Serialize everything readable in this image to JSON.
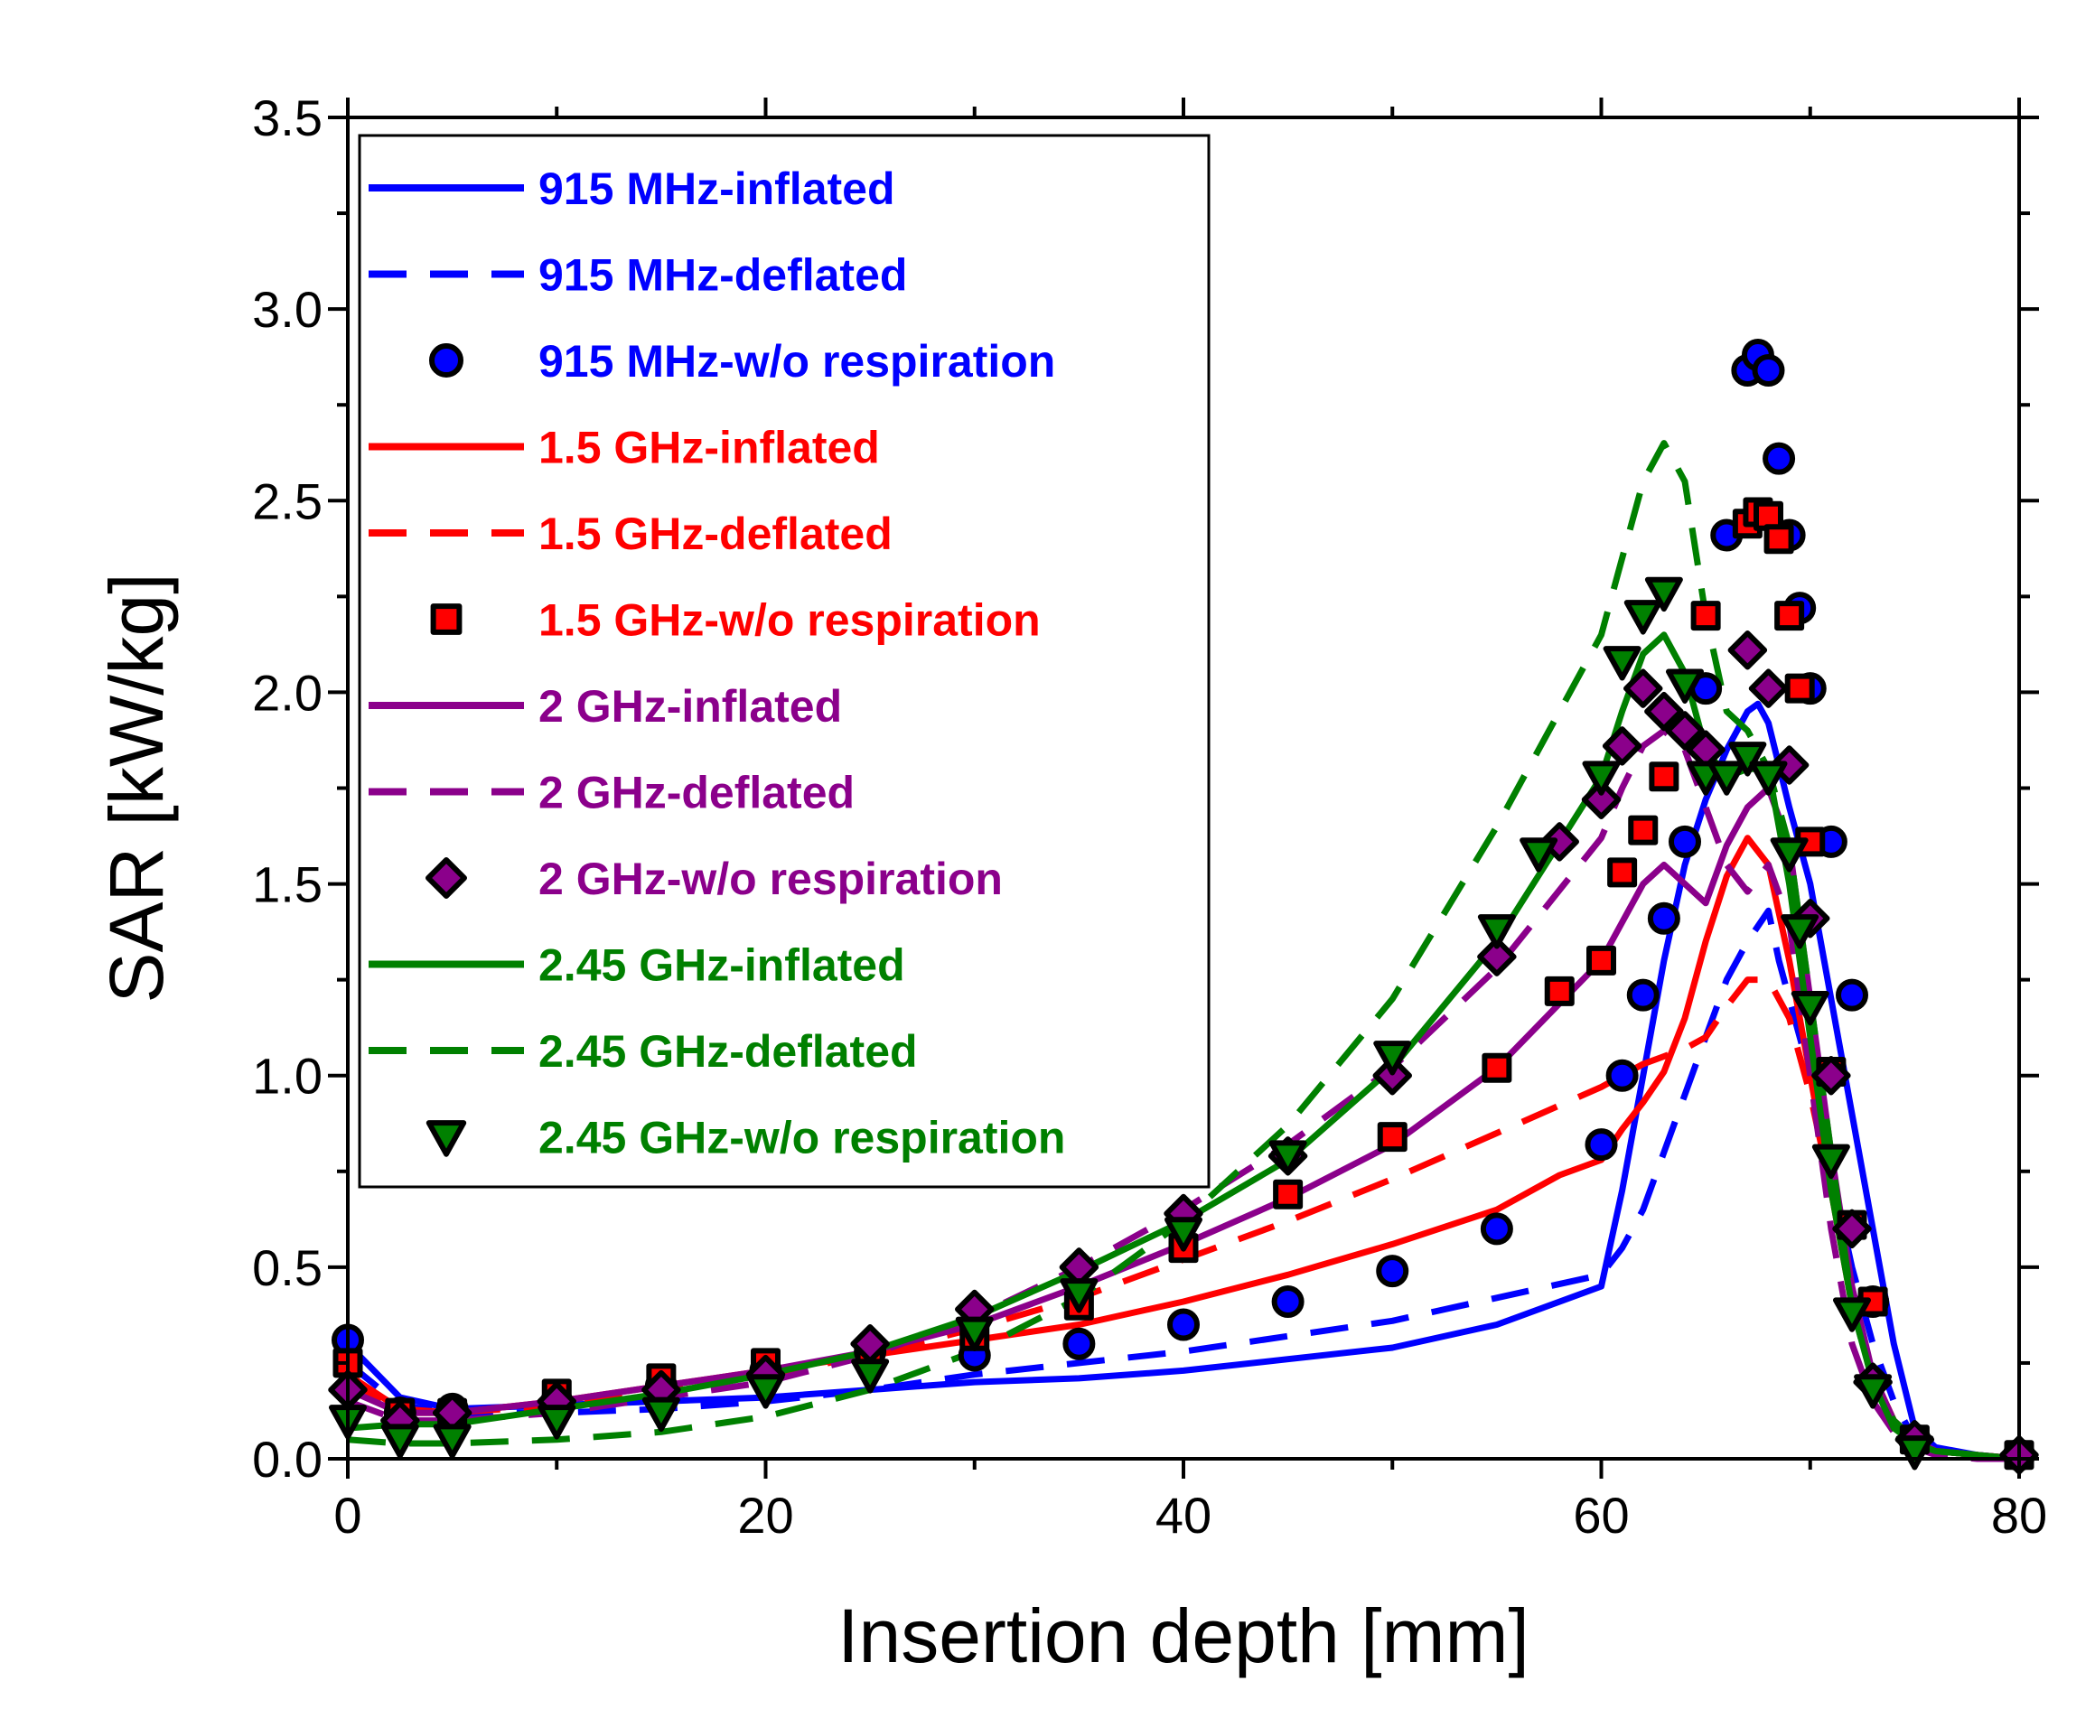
{
  "chart_data": {
    "type": "line",
    "title": "",
    "xlabel": "Insertion depth [mm]",
    "ylabel": "SAR [kW/kg]",
    "xlim": [
      0,
      80
    ],
    "ylim": [
      0,
      3.5
    ],
    "x_ticks": [
      "0",
      "20",
      "40",
      "60",
      "80"
    ],
    "y_ticks": [
      "0.0",
      "0.5",
      "1.0",
      "1.5",
      "2.0",
      "2.5",
      "3.0",
      "3.5"
    ],
    "grid": false,
    "legend_position": "top-left",
    "series": [
      {
        "name": "915 MHz-inflated",
        "color": "#0000ff",
        "kind": "solid",
        "x": [
          0,
          2.5,
          5,
          10,
          15,
          20,
          25,
          30,
          35,
          40,
          45,
          50,
          55,
          60,
          61,
          62,
          63,
          64,
          65,
          66,
          67,
          67.5,
          68,
          69,
          70,
          71,
          72,
          73,
          74,
          75,
          76,
          78,
          80
        ],
        "y": [
          0.3,
          0.16,
          0.13,
          0.14,
          0.15,
          0.16,
          0.18,
          0.2,
          0.21,
          0.23,
          0.26,
          0.29,
          0.35,
          0.45,
          0.7,
          1.0,
          1.3,
          1.55,
          1.72,
          1.85,
          1.95,
          1.97,
          1.92,
          1.7,
          1.5,
          1.2,
          0.9,
          0.6,
          0.3,
          0.08,
          0.03,
          0.01,
          0.0
        ]
      },
      {
        "name": "915 MHz-deflated",
        "color": "#0000ff",
        "kind": "dashed",
        "x": [
          0,
          2.5,
          5,
          10,
          15,
          20,
          25,
          30,
          35,
          40,
          45,
          50,
          55,
          60,
          61,
          62,
          63,
          64,
          65,
          66,
          67,
          68,
          68.5,
          69,
          70,
          71,
          72,
          73,
          74,
          75,
          76,
          78,
          80
        ],
        "y": [
          0.25,
          0.14,
          0.12,
          0.12,
          0.13,
          0.15,
          0.18,
          0.22,
          0.25,
          0.28,
          0.32,
          0.36,
          0.42,
          0.48,
          0.55,
          0.65,
          0.8,
          0.95,
          1.1,
          1.25,
          1.35,
          1.43,
          1.3,
          1.2,
          1.0,
          0.75,
          0.5,
          0.3,
          0.15,
          0.05,
          0.02,
          0.01,
          0.0
        ]
      },
      {
        "name": "915 MHz-w/o respiration",
        "color": "#0000ff",
        "kind": "marker",
        "marker": "circle",
        "x": [
          0,
          2.5,
          5,
          10,
          15,
          20,
          25,
          30,
          35,
          40,
          45,
          50,
          55,
          60,
          61,
          62,
          63,
          64,
          65,
          66,
          67,
          67.5,
          68,
          68.5,
          69,
          69.5,
          70,
          71,
          72,
          73,
          75,
          80
        ],
        "y": [
          0.31,
          0.12,
          0.13,
          0.15,
          0.19,
          0.23,
          0.28,
          0.27,
          0.3,
          0.35,
          0.41,
          0.49,
          0.6,
          0.82,
          1.0,
          1.21,
          1.41,
          1.61,
          2.01,
          2.41,
          2.84,
          2.88,
          2.84,
          2.61,
          2.41,
          2.22,
          2.01,
          1.61,
          1.21,
          0.41,
          0.05,
          0.01
        ]
      },
      {
        "name": "1.5 GHz-inflated",
        "color": "#ff0000",
        "kind": "solid",
        "x": [
          0,
          2.5,
          5,
          10,
          15,
          20,
          25,
          30,
          35,
          40,
          45,
          50,
          55,
          58,
          60,
          61,
          62,
          63,
          64,
          65,
          66,
          67,
          68,
          69,
          70,
          71,
          72,
          73,
          74,
          75,
          76,
          78,
          80
        ],
        "y": [
          0.22,
          0.13,
          0.12,
          0.15,
          0.19,
          0.23,
          0.27,
          0.31,
          0.35,
          0.41,
          0.48,
          0.56,
          0.65,
          0.74,
          0.78,
          0.86,
          0.93,
          1.01,
          1.15,
          1.35,
          1.52,
          1.62,
          1.55,
          1.3,
          1.0,
          0.7,
          0.4,
          0.22,
          0.1,
          0.04,
          0.02,
          0.01,
          0.0
        ]
      },
      {
        "name": "1.5 GHz-deflated",
        "color": "#ff0000",
        "kind": "dashed",
        "x": [
          0,
          2.5,
          5,
          10,
          15,
          20,
          25,
          30,
          35,
          40,
          45,
          50,
          55,
          60,
          61,
          62,
          63,
          64,
          65,
          66,
          67,
          68,
          69,
          70,
          71,
          72,
          73,
          74,
          75,
          76,
          78,
          80
        ],
        "y": [
          0.2,
          0.12,
          0.12,
          0.14,
          0.18,
          0.22,
          0.27,
          0.34,
          0.42,
          0.52,
          0.62,
          0.73,
          0.85,
          0.97,
          1.0,
          1.03,
          1.05,
          1.07,
          1.1,
          1.18,
          1.25,
          1.25,
          1.15,
          0.95,
          0.7,
          0.42,
          0.22,
          0.1,
          0.05,
          0.02,
          0.01,
          0.0
        ]
      },
      {
        "name": "1.5 GHz-w/o respiration",
        "color": "#ff0000",
        "kind": "marker",
        "marker": "square",
        "x": [
          0,
          2.5,
          5,
          10,
          15,
          20,
          25,
          30,
          35,
          40,
          45,
          50,
          55,
          58,
          60,
          61,
          62,
          63,
          65,
          67,
          67.5,
          68,
          68.5,
          69,
          69.5,
          70,
          71,
          72,
          73,
          75,
          80
        ],
        "y": [
          0.25,
          0.12,
          0.12,
          0.17,
          0.21,
          0.25,
          0.28,
          0.32,
          0.4,
          0.55,
          0.69,
          0.84,
          1.02,
          1.22,
          1.3,
          1.53,
          1.64,
          1.78,
          2.2,
          2.44,
          2.47,
          2.46,
          2.4,
          2.2,
          2.01,
          1.61,
          1.01,
          0.61,
          0.41,
          0.05,
          0.01
        ]
      },
      {
        "name": "2 GHz-inflated",
        "color": "#8b008b",
        "kind": "solid",
        "x": [
          0,
          2.5,
          5,
          10,
          15,
          20,
          25,
          30,
          35,
          40,
          45,
          50,
          55,
          60,
          61,
          62,
          63,
          64,
          65,
          66,
          67,
          68,
          69,
          70,
          71,
          72,
          73,
          74,
          75,
          76,
          78,
          80
        ],
        "y": [
          0.18,
          0.12,
          0.12,
          0.15,
          0.19,
          0.23,
          0.28,
          0.35,
          0.45,
          0.56,
          0.68,
          0.82,
          1.02,
          1.3,
          1.4,
          1.5,
          1.55,
          1.5,
          1.45,
          1.6,
          1.7,
          1.75,
          1.6,
          1.2,
          0.8,
          0.45,
          0.22,
          0.1,
          0.05,
          0.02,
          0.01,
          0.0
        ]
      },
      {
        "name": "2 GHz-deflated",
        "color": "#8b008b",
        "kind": "dashed",
        "x": [
          0,
          2.5,
          5,
          10,
          15,
          20,
          25,
          30,
          35,
          40,
          45,
          50,
          55,
          60,
          61,
          62,
          63,
          64,
          65,
          66,
          67,
          68,
          69,
          70,
          71,
          72,
          73,
          74,
          75,
          76,
          78,
          80
        ],
        "y": [
          0.15,
          0.1,
          0.1,
          0.12,
          0.16,
          0.2,
          0.27,
          0.37,
          0.5,
          0.65,
          0.82,
          1.02,
          1.28,
          1.62,
          1.75,
          1.86,
          1.9,
          1.85,
          1.7,
          1.55,
          1.48,
          1.55,
          1.4,
          1.0,
          0.6,
          0.3,
          0.15,
          0.07,
          0.03,
          0.01,
          0.0,
          0.0
        ]
      },
      {
        "name": "2 GHz-w/o respiration",
        "color": "#8b008b",
        "kind": "marker",
        "marker": "diamond",
        "x": [
          0,
          2.5,
          5,
          10,
          15,
          20,
          25,
          30,
          35,
          40,
          45,
          50,
          55,
          58,
          60,
          61,
          62,
          63,
          64,
          65,
          67,
          68,
          69,
          70,
          71,
          72,
          73,
          75,
          80
        ],
        "y": [
          0.18,
          0.1,
          0.12,
          0.15,
          0.18,
          0.22,
          0.3,
          0.39,
          0.5,
          0.64,
          0.79,
          1.0,
          1.31,
          1.61,
          1.72,
          1.86,
          2.01,
          1.95,
          1.9,
          1.85,
          2.11,
          2.01,
          1.81,
          1.41,
          1.0,
          0.6,
          0.2,
          0.05,
          0.01
        ]
      },
      {
        "name": "2.45 GHz-inflated",
        "color": "#008000",
        "kind": "solid",
        "x": [
          0,
          2.5,
          5,
          10,
          15,
          20,
          25,
          30,
          35,
          40,
          45,
          50,
          55,
          60,
          61,
          62,
          63,
          64,
          65,
          66,
          67,
          68,
          69,
          70,
          71,
          72,
          73,
          74,
          75,
          76,
          78,
          80
        ],
        "y": [
          0.08,
          0.09,
          0.09,
          0.13,
          0.17,
          0.22,
          0.28,
          0.37,
          0.49,
          0.62,
          0.78,
          1.02,
          1.35,
          1.78,
          1.95,
          2.1,
          2.15,
          2.05,
          1.85,
          1.78,
          1.8,
          1.8,
          1.5,
          1.1,
          0.7,
          0.4,
          0.2,
          0.08,
          0.04,
          0.02,
          0.01,
          0.0
        ]
      },
      {
        "name": "2.45 GHz-deflated",
        "color": "#008000",
        "kind": "dashed",
        "x": [
          0,
          2.5,
          5,
          10,
          15,
          20,
          25,
          30,
          35,
          40,
          45,
          50,
          55,
          60,
          61,
          62,
          63,
          64,
          65,
          66,
          67,
          68,
          69,
          70,
          71,
          72,
          73,
          74,
          75,
          76,
          78,
          80
        ],
        "y": [
          0.05,
          0.04,
          0.04,
          0.05,
          0.07,
          0.11,
          0.18,
          0.28,
          0.42,
          0.62,
          0.87,
          1.2,
          1.65,
          2.15,
          2.35,
          2.55,
          2.65,
          2.55,
          2.2,
          1.95,
          1.9,
          1.8,
          1.6,
          1.2,
          0.8,
          0.4,
          0.2,
          0.1,
          0.05,
          0.02,
          0.01,
          0.0
        ]
      },
      {
        "name": "2.45 GHz-w/o respiration",
        "color": "#008000",
        "kind": "marker",
        "marker": "triangle-down",
        "x": [
          0,
          2.5,
          5,
          10,
          15,
          20,
          25,
          30,
          35,
          40,
          45,
          50,
          55,
          57,
          60,
          61,
          62,
          63,
          64,
          65,
          66,
          67,
          68,
          69,
          69.5,
          70,
          71,
          72,
          73,
          75
        ],
        "y": [
          0.1,
          0.05,
          0.05,
          0.1,
          0.12,
          0.18,
          0.22,
          0.33,
          0.43,
          0.59,
          0.79,
          1.05,
          1.38,
          1.58,
          1.78,
          2.08,
          2.2,
          2.26,
          2.02,
          1.78,
          1.78,
          1.83,
          1.78,
          1.58,
          1.38,
          1.18,
          0.78,
          0.38,
          0.18,
          0.02
        ]
      }
    ]
  }
}
